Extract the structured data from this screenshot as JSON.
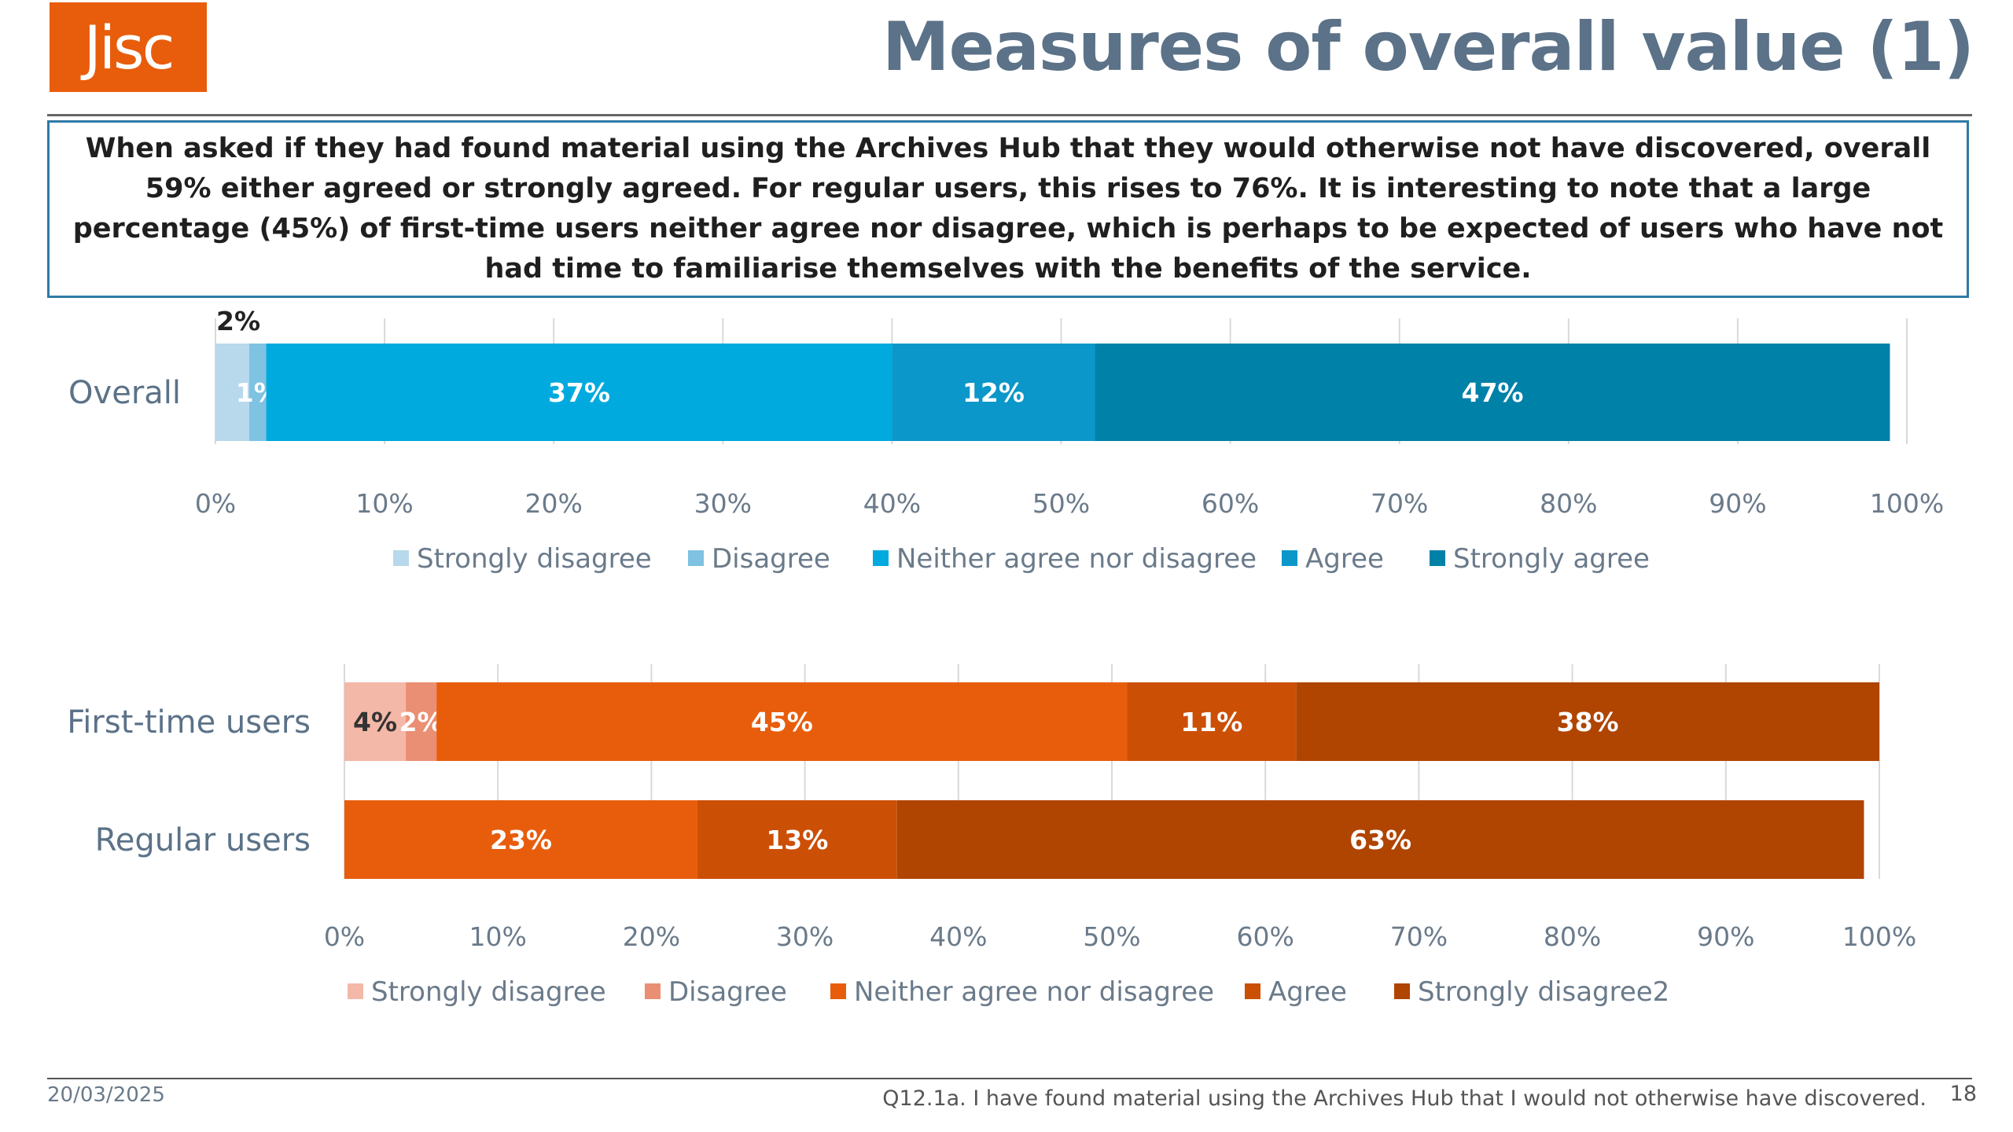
{
  "header": {
    "logo_text": "Jisc",
    "title": "Measures of overall value (1)"
  },
  "summary": {
    "text": "When asked if they had found material using the Archives Hub that they would otherwise not have discovered, overall 59% either agreed or strongly agreed.  For regular users, this rises to 76%.  It is interesting to note that a large percentage (45%) of first-time users neither agree nor disagree, which is perhaps to be expected of users who have not had time to familiarise themselves with the benefits of the service."
  },
  "chart_data": [
    {
      "type": "bar",
      "orientation": "horizontal",
      "stacked": true,
      "title": "",
      "xlabel": "",
      "ylabel": "",
      "xlim": [
        0,
        1
      ],
      "x_ticks": [
        "0%",
        "10%",
        "20%",
        "30%",
        "40%",
        "50%",
        "60%",
        "70%",
        "80%",
        "90%",
        "100%"
      ],
      "grid": "vertical",
      "legend_position": "bottom",
      "categories": [
        "Overall"
      ],
      "series": [
        {
          "name": "Strongly disagree",
          "color": "#b8d8ec",
          "values": [
            0.02
          ],
          "labels": [
            "2%"
          ]
        },
        {
          "name": "Disagree",
          "color": "#7fc2e2",
          "values": [
            0.01
          ],
          "labels": [
            "1%"
          ]
        },
        {
          "name": "Neither agree nor disagree",
          "color": "#00aade",
          "values": [
            0.37
          ],
          "labels": [
            "37%"
          ]
        },
        {
          "name": "Agree",
          "color": "#0b97c9",
          "values": [
            0.12
          ],
          "labels": [
            "12%"
          ]
        },
        {
          "name": "Strongly agree",
          "color": "#0081a8",
          "values": [
            0.47
          ],
          "labels": [
            "47%"
          ]
        }
      ]
    },
    {
      "type": "bar",
      "orientation": "horizontal",
      "stacked": true,
      "title": "",
      "xlabel": "",
      "ylabel": "",
      "xlim": [
        0,
        1
      ],
      "x_ticks": [
        "0%",
        "10%",
        "20%",
        "30%",
        "40%",
        "50%",
        "60%",
        "70%",
        "80%",
        "90%",
        "100%"
      ],
      "grid": "vertical",
      "legend_position": "bottom",
      "categories": [
        "First-time users",
        "Regular users"
      ],
      "series": [
        {
          "name": "Strongly disagree",
          "color": "#f4b8a8",
          "values": [
            0.04,
            0.0
          ],
          "labels": [
            "4%",
            ""
          ]
        },
        {
          "name": "Disagree",
          "color": "#ea8e74",
          "values": [
            0.02,
            0.0
          ],
          "labels": [
            "2%",
            ""
          ]
        },
        {
          "name": "Neither agree nor disagree",
          "color": "#e85d0c",
          "values": [
            0.45,
            0.23
          ],
          "labels": [
            "45%",
            "23%"
          ]
        },
        {
          "name": "Agree",
          "color": "#cc4f06",
          "values": [
            0.11,
            0.13
          ],
          "labels": [
            "11%",
            "13%"
          ]
        },
        {
          "name": "Strongly disagree2",
          "color": "#b04401",
          "values": [
            0.38,
            0.63
          ],
          "labels": [
            "38%",
            "63%"
          ]
        }
      ]
    }
  ],
  "footer": {
    "date": "20/03/2025",
    "note": "Q12.1a. I have found material using the Archives Hub that I would not otherwise have discovered.",
    "page": "18"
  }
}
